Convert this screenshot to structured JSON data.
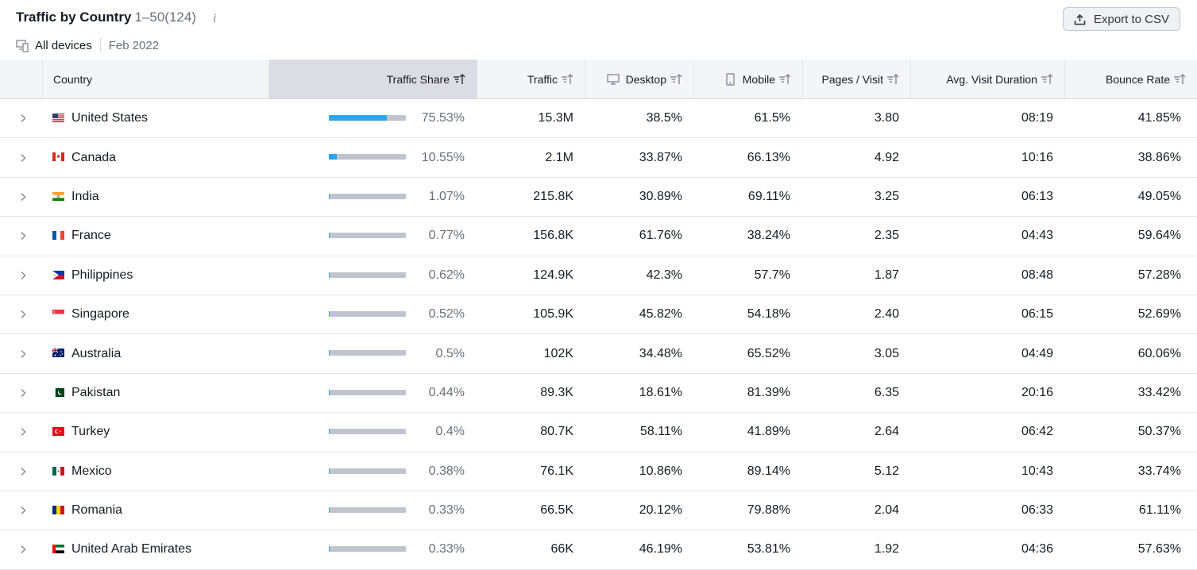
{
  "header": {
    "title": "Traffic by Country",
    "range": "1–50(124)",
    "devices": "All devices",
    "date": "Feb 2022",
    "export_label": "Export to CSV"
  },
  "columns": {
    "country": "Country",
    "traffic_share": "Traffic Share",
    "traffic": "Traffic",
    "desktop": "Desktop",
    "mobile": "Mobile",
    "pages_visit": "Pages / Visit",
    "duration": "Avg. Visit Duration",
    "bounce": "Bounce Rate"
  },
  "colors": {
    "accent": "#2aa7ee",
    "bar_bg": "#c0c4cd",
    "header_bg": "#f4f5f9",
    "active_header_bg": "#dcdde4"
  },
  "rows": [
    {
      "country": "United States",
      "flag": "us-flag",
      "share": "75.53%",
      "share_fraction": 0.7553,
      "traffic": "15.3M",
      "desktop": "38.5%",
      "mobile": "61.5%",
      "pages": "3.80",
      "duration": "08:19",
      "bounce": "41.85%"
    },
    {
      "country": "Canada",
      "flag": "ca-flag",
      "share": "10.55%",
      "share_fraction": 0.1055,
      "traffic": "2.1M",
      "desktop": "33.87%",
      "mobile": "66.13%",
      "pages": "4.92",
      "duration": "10:16",
      "bounce": "38.86%"
    },
    {
      "country": "India",
      "flag": "in-flag",
      "share": "1.07%",
      "share_fraction": 0.0107,
      "traffic": "215.8K",
      "desktop": "30.89%",
      "mobile": "69.11%",
      "pages": "3.25",
      "duration": "06:13",
      "bounce": "49.05%"
    },
    {
      "country": "France",
      "flag": "fr-flag",
      "share": "0.77%",
      "share_fraction": 0.0077,
      "traffic": "156.8K",
      "desktop": "61.76%",
      "mobile": "38.24%",
      "pages": "2.35",
      "duration": "04:43",
      "bounce": "59.64%"
    },
    {
      "country": "Philippines",
      "flag": "ph-flag",
      "share": "0.62%",
      "share_fraction": 0.0062,
      "traffic": "124.9K",
      "desktop": "42.3%",
      "mobile": "57.7%",
      "pages": "1.87",
      "duration": "08:48",
      "bounce": "57.28%"
    },
    {
      "country": "Singapore",
      "flag": "sg-flag",
      "share": "0.52%",
      "share_fraction": 0.0052,
      "traffic": "105.9K",
      "desktop": "45.82%",
      "mobile": "54.18%",
      "pages": "2.40",
      "duration": "06:15",
      "bounce": "52.69%"
    },
    {
      "country": "Australia",
      "flag": "au-flag",
      "share": "0.5%",
      "share_fraction": 0.005,
      "traffic": "102K",
      "desktop": "34.48%",
      "mobile": "65.52%",
      "pages": "3.05",
      "duration": "04:49",
      "bounce": "60.06%"
    },
    {
      "country": "Pakistan",
      "flag": "pk-flag",
      "share": "0.44%",
      "share_fraction": 0.0044,
      "traffic": "89.3K",
      "desktop": "18.61%",
      "mobile": "81.39%",
      "pages": "6.35",
      "duration": "20:16",
      "bounce": "33.42%"
    },
    {
      "country": "Turkey",
      "flag": "tr-flag",
      "share": "0.4%",
      "share_fraction": 0.004,
      "traffic": "80.7K",
      "desktop": "58.11%",
      "mobile": "41.89%",
      "pages": "2.64",
      "duration": "06:42",
      "bounce": "50.37%"
    },
    {
      "country": "Mexico",
      "flag": "mx-flag",
      "share": "0.38%",
      "share_fraction": 0.0038,
      "traffic": "76.1K",
      "desktop": "10.86%",
      "mobile": "89.14%",
      "pages": "5.12",
      "duration": "10:43",
      "bounce": "33.74%"
    },
    {
      "country": "Romania",
      "flag": "ro-flag",
      "share": "0.33%",
      "share_fraction": 0.0033,
      "traffic": "66.5K",
      "desktop": "20.12%",
      "mobile": "79.88%",
      "pages": "2.04",
      "duration": "06:33",
      "bounce": "61.11%"
    },
    {
      "country": "United Arab Emirates",
      "flag": "ae-flag",
      "share": "0.33%",
      "share_fraction": 0.0033,
      "traffic": "66K",
      "desktop": "46.19%",
      "mobile": "53.81%",
      "pages": "1.92",
      "duration": "04:36",
      "bounce": "57.63%"
    }
  ]
}
